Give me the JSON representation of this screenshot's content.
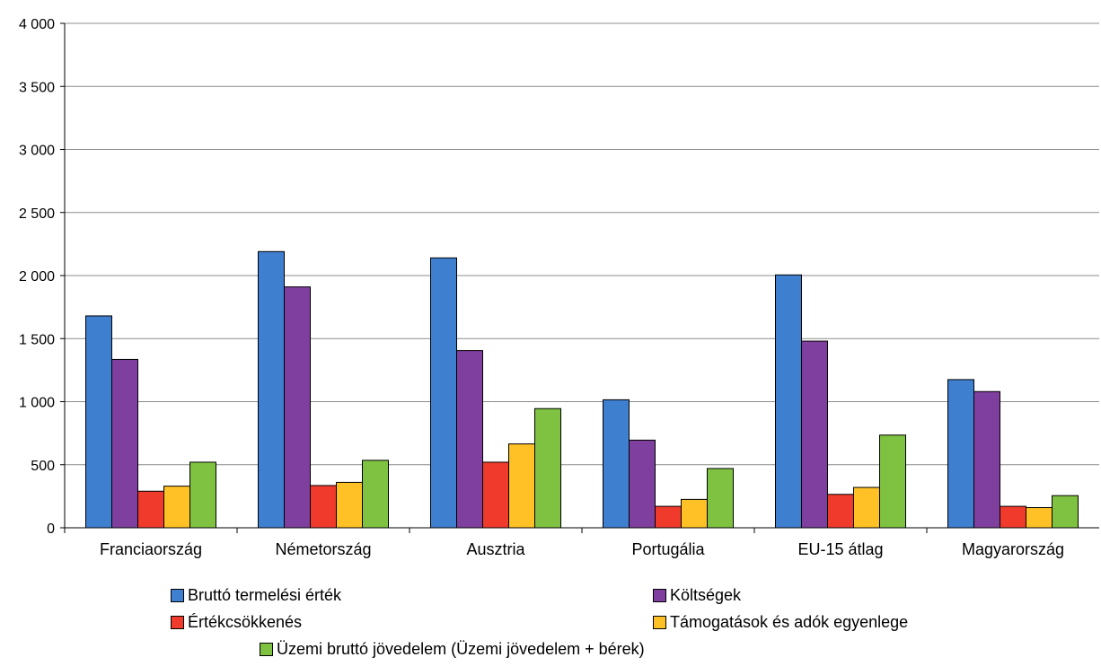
{
  "chart_data": {
    "type": "bar",
    "categories": [
      "Franciaország",
      "Németország",
      "Ausztria",
      "Portugália",
      "EU-15 átlag",
      "Magyarország"
    ],
    "series": [
      {
        "name": "Bruttó termelési érték",
        "color": "#3f7fd0",
        "values": [
          1680,
          2190,
          2140,
          1015,
          2005,
          1175
        ]
      },
      {
        "name": "Költségek",
        "color": "#7f3f9f",
        "values": [
          1335,
          1910,
          1405,
          695,
          1480,
          1080
        ]
      },
      {
        "name": "Értékcsökkenés",
        "color": "#ef3a2c",
        "values": [
          290,
          335,
          520,
          170,
          265,
          170
        ]
      },
      {
        "name": "Támogatások és adók egyenlege",
        "color": "#ffc125",
        "values": [
          330,
          360,
          665,
          225,
          320,
          160
        ]
      },
      {
        "name": "Üzemi bruttó jövedelem (Üzemi jövedelem + bérek)",
        "color": "#7fc241",
        "values": [
          520,
          535,
          945,
          470,
          735,
          255
        ]
      }
    ],
    "yticks": [
      "0",
      "500",
      "1 000",
      "1 500",
      "2 000",
      "2 500",
      "3 000",
      "3 500",
      "4 000"
    ],
    "ylim": [
      0,
      4000
    ],
    "ystep": 500,
    "grid": true,
    "legend_position": "bottom"
  }
}
